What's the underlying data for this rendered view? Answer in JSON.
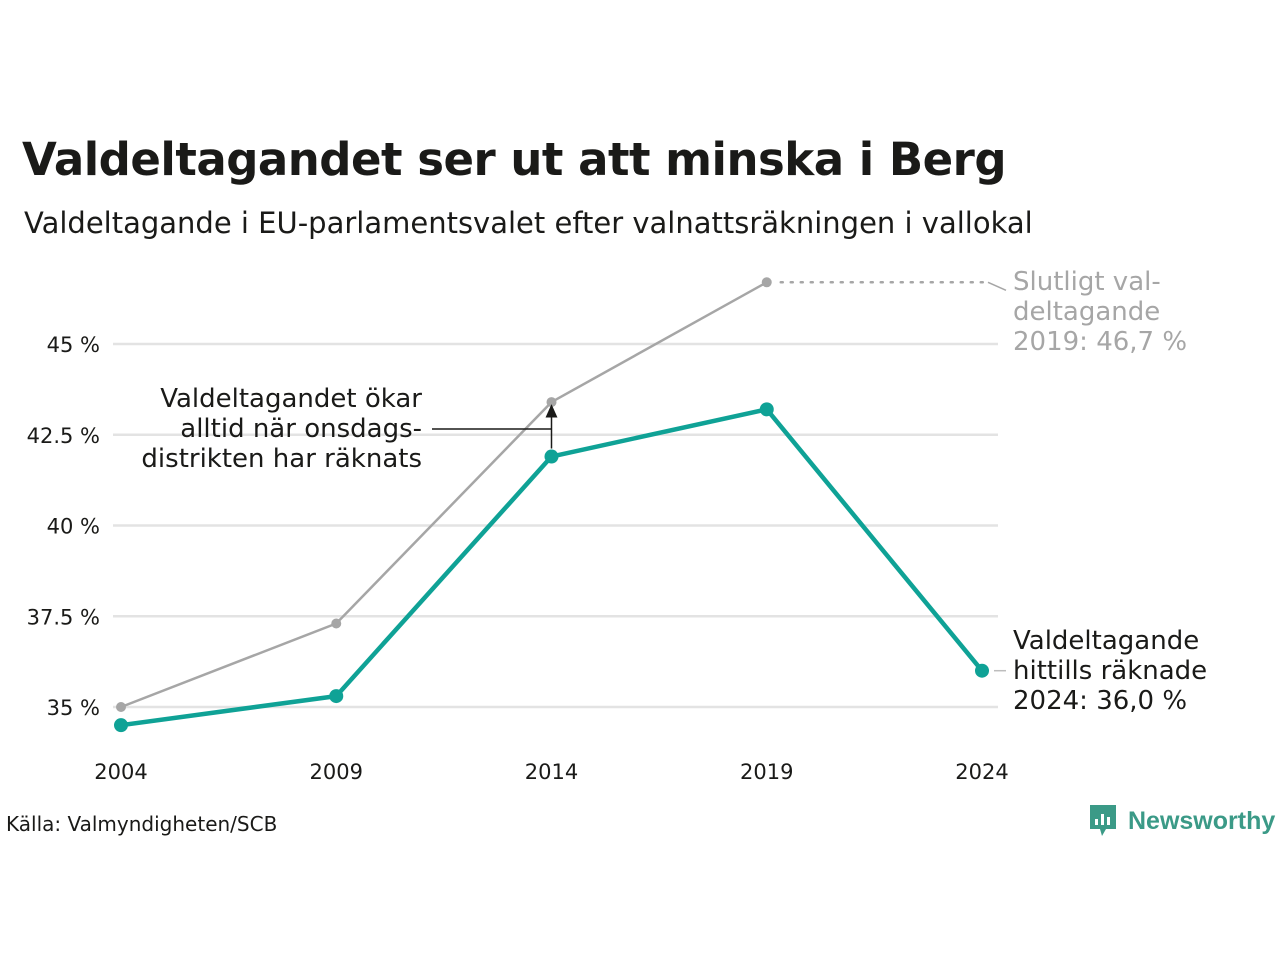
{
  "title": "Valdeltagandet ser ut att minska i Berg",
  "subtitle": "Valdeltagande i EU-parlamentsvalet efter valnattsräkningen i vallokal",
  "source": "Källa: Valmyndigheten/SCB",
  "brand": {
    "name": "Newsworthy",
    "icon": "newsworthy-logo-icon",
    "color": "#3b9a87"
  },
  "chart_data": {
    "type": "line",
    "x": [
      "2004",
      "2009",
      "2014",
      "2019",
      "2024"
    ],
    "y_ticks": [
      {
        "value": 35,
        "label": "35 %"
      },
      {
        "value": 37.5,
        "label": "37.5 %"
      },
      {
        "value": 40,
        "label": "40 %"
      },
      {
        "value": 42.5,
        "label": "42.5 %"
      },
      {
        "value": 45,
        "label": "45 %"
      }
    ],
    "ylim": [
      34,
      47
    ],
    "grid": true,
    "series": [
      {
        "key": "final",
        "color": "#a6a6a6",
        "values": [
          35.0,
          37.3,
          43.4,
          46.7,
          null
        ]
      },
      {
        "key": "counted",
        "color": "#0fa296",
        "values": [
          34.5,
          35.3,
          41.9,
          43.2,
          36.0
        ]
      }
    ],
    "annotations": {
      "final_label": [
        "Slutligt val-",
        "deltagande",
        "2019: 46,7 %"
      ],
      "counted_label": [
        "Valdeltagande",
        "hittills räknade",
        "2024: 36,0 %"
      ],
      "note": [
        "Valdeltagandet ökar",
        "alltid när onsdags-",
        "distrikten har räknats"
      ]
    }
  }
}
